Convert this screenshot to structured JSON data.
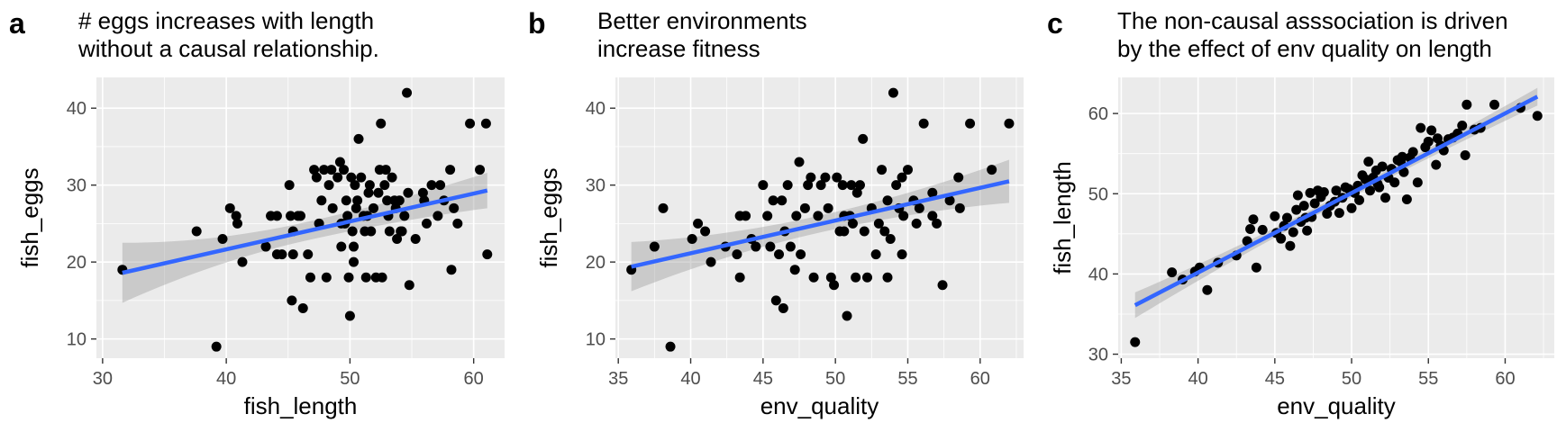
{
  "chart_data": [
    {
      "type": "scatter",
      "letter": "a",
      "title": "# eggs increases with length\nwithout a causal relationship.",
      "xlabel": "fish_length",
      "ylabel": "fish_eggs",
      "xlim": [
        29.5,
        62.5
      ],
      "ylim": [
        7.5,
        44.0
      ],
      "xticks": [
        30,
        40,
        50,
        60
      ],
      "yticks": [
        10,
        20,
        30,
        40
      ],
      "grid": true,
      "points": [
        [
          31.6,
          19
        ],
        [
          37.6,
          24
        ],
        [
          39.2,
          9
        ],
        [
          39.7,
          23
        ],
        [
          40.3,
          27
        ],
        [
          40.8,
          26
        ],
        [
          40.9,
          25
        ],
        [
          41.3,
          20
        ],
        [
          43.2,
          22
        ],
        [
          43.6,
          26
        ],
        [
          44.1,
          26
        ],
        [
          44.5,
          21
        ],
        [
          45.1,
          30
        ],
        [
          45.3,
          15
        ],
        [
          45.4,
          21
        ],
        [
          45.4,
          24
        ],
        [
          45.8,
          26
        ],
        [
          46.0,
          26
        ],
        [
          46.2,
          14
        ],
        [
          46.6,
          21
        ],
        [
          46.8,
          18
        ],
        [
          47.1,
          32
        ],
        [
          47.3,
          31
        ],
        [
          47.5,
          25
        ],
        [
          47.7,
          28
        ],
        [
          47.9,
          32
        ],
        [
          48.1,
          18
        ],
        [
          48.3,
          30
        ],
        [
          48.5,
          32
        ],
        [
          48.6,
          27
        ],
        [
          49.0,
          31
        ],
        [
          49.2,
          33
        ],
        [
          49.3,
          22
        ],
        [
          49.5,
          32
        ],
        [
          49.6,
          25
        ],
        [
          49.7,
          28
        ],
        [
          49.8,
          26
        ],
        [
          49.9,
          18
        ],
        [
          50.0,
          13
        ],
        [
          50.1,
          31
        ],
        [
          50.2,
          24
        ],
        [
          50.3,
          22
        ],
        [
          50.3,
          20
        ],
        [
          50.4,
          30
        ],
        [
          50.5,
          27
        ],
        [
          50.6,
          28
        ],
        [
          50.7,
          36
        ],
        [
          50.9,
          31
        ],
        [
          51.1,
          26
        ],
        [
          51.2,
          24
        ],
        [
          51.3,
          18
        ],
        [
          51.4,
          26
        ],
        [
          51.6,
          30
        ],
        [
          51.7,
          24
        ],
        [
          51.9,
          27
        ],
        [
          52.1,
          18
        ],
        [
          52.3,
          29
        ],
        [
          52.4,
          32
        ],
        [
          52.5,
          38
        ],
        [
          52.6,
          18
        ],
        [
          52.8,
          30
        ],
        [
          53.0,
          28
        ],
        [
          53.1,
          26
        ],
        [
          53.2,
          24
        ],
        [
          53.4,
          31
        ],
        [
          53.6,
          28
        ],
        [
          53.7,
          27
        ],
        [
          53.8,
          23
        ],
        [
          54.0,
          28
        ],
        [
          54.1,
          24
        ],
        [
          54.4,
          26
        ],
        [
          54.6,
          42
        ],
        [
          54.7,
          29
        ],
        [
          54.8,
          17
        ],
        [
          55.3,
          23
        ],
        [
          55.9,
          29
        ],
        [
          56.2,
          25
        ],
        [
          56.6,
          30
        ],
        [
          57.1,
          26
        ],
        [
          57.6,
          28
        ],
        [
          58.1,
          32
        ],
        [
          58.2,
          19
        ],
        [
          58.4,
          27
        ],
        [
          58.7,
          25
        ],
        [
          59.7,
          38
        ],
        [
          60.5,
          32
        ],
        [
          61.0,
          38
        ],
        [
          61.1,
          21
        ],
        [
          56.0,
          28
        ],
        [
          57.3,
          30
        ],
        [
          49.3,
          25
        ],
        [
          51.5,
          29
        ],
        [
          45.2,
          26
        ],
        [
          44.1,
          21
        ],
        [
          52.9,
          32
        ],
        [
          54.2,
          24
        ]
      ],
      "fit": {
        "x": [
          31.6,
          61.1
        ],
        "y": [
          18.6,
          29.3
        ],
        "ci_half_width": [
          3.9,
          2.3,
          1.2,
          2.3
        ]
      }
    },
    {
      "type": "scatter",
      "letter": "b",
      "title": "Better environments\nincrease fitness",
      "xlabel": "env_quality",
      "ylabel": "fish_eggs",
      "xlim": [
        34.8,
        63.0
      ],
      "ylim": [
        7.5,
        44.0
      ],
      "xticks": [
        35,
        40,
        45,
        50,
        55,
        60
      ],
      "yticks": [
        10,
        20,
        30,
        40
      ],
      "grid": true,
      "points": [
        [
          35.9,
          19
        ],
        [
          37.5,
          22
        ],
        [
          38.1,
          27
        ],
        [
          38.6,
          9
        ],
        [
          40.1,
          23
        ],
        [
          40.5,
          25
        ],
        [
          41.0,
          24
        ],
        [
          41.4,
          20
        ],
        [
          42.4,
          22
        ],
        [
          43.2,
          21
        ],
        [
          43.4,
          26
        ],
        [
          43.4,
          18
        ],
        [
          43.8,
          26
        ],
        [
          44.2,
          23
        ],
        [
          44.5,
          22
        ],
        [
          45.0,
          30
        ],
        [
          45.3,
          26
        ],
        [
          45.5,
          22
        ],
        [
          45.7,
          28
        ],
        [
          45.9,
          15
        ],
        [
          46.1,
          21
        ],
        [
          46.3,
          28
        ],
        [
          46.4,
          14
        ],
        [
          46.5,
          24
        ],
        [
          46.7,
          30
        ],
        [
          46.9,
          22
        ],
        [
          47.2,
          19
        ],
        [
          47.3,
          26
        ],
        [
          47.5,
          33
        ],
        [
          47.6,
          21
        ],
        [
          47.9,
          27
        ],
        [
          48.1,
          30
        ],
        [
          48.3,
          31
        ],
        [
          48.5,
          18
        ],
        [
          48.8,
          26
        ],
        [
          49.0,
          30
        ],
        [
          49.3,
          31
        ],
        [
          49.5,
          27
        ],
        [
          49.7,
          18
        ],
        [
          49.9,
          17
        ],
        [
          50.1,
          31
        ],
        [
          50.3,
          24
        ],
        [
          50.5,
          30
        ],
        [
          50.6,
          24
        ],
        [
          50.8,
          13
        ],
        [
          51.0,
          26
        ],
        [
          51.1,
          30
        ],
        [
          51.2,
          25
        ],
        [
          51.4,
          18
        ],
        [
          51.5,
          29
        ],
        [
          51.7,
          30
        ],
        [
          51.9,
          36
        ],
        [
          52.0,
          24
        ],
        [
          52.2,
          18
        ],
        [
          52.5,
          27
        ],
        [
          52.8,
          21
        ],
        [
          53.0,
          25
        ],
        [
          53.2,
          32
        ],
        [
          53.4,
          24
        ],
        [
          53.6,
          18
        ],
        [
          53.8,
          23
        ],
        [
          54.0,
          42
        ],
        [
          54.2,
          30
        ],
        [
          54.4,
          27
        ],
        [
          54.6,
          31
        ],
        [
          54.7,
          26
        ],
        [
          55.0,
          32
        ],
        [
          55.4,
          28
        ],
        [
          55.6,
          25
        ],
        [
          55.8,
          27
        ],
        [
          56.1,
          38
        ],
        [
          56.7,
          29
        ],
        [
          57.0,
          25
        ],
        [
          57.4,
          17
        ],
        [
          57.9,
          28
        ],
        [
          58.5,
          31
        ],
        [
          58.6,
          27
        ],
        [
          59.3,
          38
        ],
        [
          60.8,
          32
        ],
        [
          62.0,
          38
        ],
        [
          53.6,
          28
        ],
        [
          50.6,
          26
        ],
        [
          56.7,
          26
        ],
        [
          54.6,
          21
        ]
      ],
      "fit": {
        "x": [
          35.9,
          62.0
        ],
        "y": [
          19.4,
          30.5
        ],
        "ci_half_width": [
          3.2,
          1.9,
          1.1,
          2.8
        ]
      }
    },
    {
      "type": "scatter",
      "letter": "c",
      "title": "The non-causal asssociation is driven\nby the effect of env quality on length",
      "xlabel": "env_quality",
      "ylabel": "fish_length",
      "xlim": [
        34.8,
        63.2
      ],
      "ylim": [
        29.5,
        64.5
      ],
      "xticks": [
        35,
        40,
        45,
        50,
        55,
        60
      ],
      "yticks": [
        30,
        40,
        50,
        60
      ],
      "grid": true,
      "points": [
        [
          35.9,
          31.5
        ],
        [
          38.3,
          40.2
        ],
        [
          39.0,
          39.3
        ],
        [
          39.8,
          40.3
        ],
        [
          40.1,
          40.8
        ],
        [
          40.6,
          38.0
        ],
        [
          41.3,
          41.4
        ],
        [
          42.5,
          42.3
        ],
        [
          43.2,
          44.1
        ],
        [
          43.4,
          45.6
        ],
        [
          43.6,
          46.8
        ],
        [
          43.8,
          40.8
        ],
        [
          44.2,
          45.5
        ],
        [
          45.1,
          45.1
        ],
        [
          45.4,
          44.4
        ],
        [
          45.6,
          46.0
        ],
        [
          45.8,
          47.0
        ],
        [
          46.0,
          43.5
        ],
        [
          46.2,
          45.2
        ],
        [
          46.4,
          48.0
        ],
        [
          46.5,
          49.8
        ],
        [
          46.7,
          46.5
        ],
        [
          46.9,
          48.5
        ],
        [
          47.1,
          45.4
        ],
        [
          47.3,
          50.1
        ],
        [
          47.4,
          47.1
        ],
        [
          47.6,
          48.8
        ],
        [
          47.8,
          50.4
        ],
        [
          48.0,
          49.6
        ],
        [
          48.2,
          50.2
        ],
        [
          48.4,
          47.5
        ],
        [
          48.6,
          48.5
        ],
        [
          48.9,
          49.0
        ],
        [
          49.2,
          47.6
        ],
        [
          49.4,
          49.5
        ],
        [
          49.6,
          50.8
        ],
        [
          49.8,
          50.6
        ],
        [
          50.0,
          48.2
        ],
        [
          50.2,
          50.1
        ],
        [
          50.4,
          51.0
        ],
        [
          50.5,
          49.2
        ],
        [
          50.7,
          52.3
        ],
        [
          50.9,
          51.8
        ],
        [
          51.1,
          54.0
        ],
        [
          51.2,
          50.4
        ],
        [
          51.4,
          52.0
        ],
        [
          51.6,
          52.9
        ],
        [
          51.8,
          50.8
        ],
        [
          52.0,
          53.4
        ],
        [
          52.2,
          49.5
        ],
        [
          52.4,
          52.0
        ],
        [
          52.6,
          53.1
        ],
        [
          52.8,
          51.4
        ],
        [
          53.0,
          54.2
        ],
        [
          53.2,
          54.0
        ],
        [
          53.4,
          52.7
        ],
        [
          53.6,
          49.3
        ],
        [
          53.8,
          54.5
        ],
        [
          54.0,
          55.2
        ],
        [
          54.3,
          51.4
        ],
        [
          54.5,
          58.2
        ],
        [
          54.8,
          55.8
        ],
        [
          55.0,
          56.5
        ],
        [
          55.2,
          57.9
        ],
        [
          55.5,
          53.6
        ],
        [
          55.8,
          56.0
        ],
        [
          56.0,
          55.4
        ],
        [
          56.3,
          56.8
        ],
        [
          56.6,
          57.0
        ],
        [
          56.9,
          57.5
        ],
        [
          57.2,
          58.5
        ],
        [
          57.5,
          61.1
        ],
        [
          57.4,
          54.8
        ],
        [
          58.0,
          58.0
        ],
        [
          58.4,
          58.2
        ],
        [
          59.3,
          61.1
        ],
        [
          61.0,
          60.7
        ],
        [
          62.1,
          59.7
        ],
        [
          45.0,
          47.2
        ],
        [
          49.0,
          50.4
        ],
        [
          51.7,
          51.2
        ],
        [
          53.3,
          54.6
        ],
        [
          47.0,
          47.0
        ],
        [
          55.6,
          56.9
        ]
      ],
      "fit": {
        "x": [
          35.9,
          62.1
        ],
        "y": [
          36.1,
          62.1
        ],
        "ci_half_width": [
          1.6,
          0.9,
          0.5,
          1.1
        ]
      }
    }
  ]
}
